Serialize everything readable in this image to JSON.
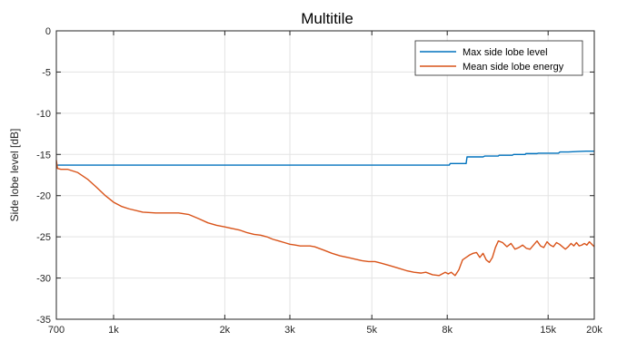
{
  "chart_data": {
    "type": "line",
    "title": "Multitile",
    "xlabel": "",
    "ylabel": "Side lobe level [dB]",
    "xscale": "log",
    "xlim": [
      700,
      20000
    ],
    "ylim": [
      -35,
      0
    ],
    "grid": true,
    "legend_position": "top-right",
    "x_ticks": [
      700,
      1000,
      2000,
      3000,
      5000,
      8000,
      15000,
      20000
    ],
    "x_tick_labels": [
      "700",
      "1k",
      "2k",
      "3k",
      "5k",
      "8k",
      "15k",
      "20k"
    ],
    "y_ticks": [
      0,
      -5,
      -10,
      -15,
      -20,
      -25,
      -30,
      -35
    ],
    "y_tick_labels": [
      "0",
      "-5",
      "-10",
      "-15",
      "-20",
      "-25",
      "-30",
      "-35"
    ],
    "series": [
      {
        "name": "Max side lobe level",
        "color": "#0072BD",
        "x": [
          700,
          702,
          1000,
          2000,
          4000,
          6000,
          8000,
          8100,
          8150,
          9000,
          9050,
          10000,
          10100,
          11000,
          11050,
          12000,
          12100,
          13000,
          13050,
          14000,
          14100,
          16000,
          16150,
          17000,
          18000,
          19000,
          20000
        ],
        "y": [
          -16.0,
          -16.3,
          -16.3,
          -16.3,
          -16.3,
          -16.3,
          -16.3,
          -16.3,
          -16.1,
          -16.1,
          -15.3,
          -15.3,
          -15.2,
          -15.2,
          -15.1,
          -15.1,
          -15.0,
          -15.0,
          -14.9,
          -14.9,
          -14.85,
          -14.85,
          -14.7,
          -14.7,
          -14.65,
          -14.6,
          -14.6
        ]
      },
      {
        "name": "Mean side lobe energy",
        "color": "#D95319",
        "x": [
          700,
          705,
          720,
          750,
          800,
          850,
          900,
          950,
          1000,
          1050,
          1100,
          1200,
          1300,
          1400,
          1500,
          1600,
          1700,
          1800,
          1900,
          2000,
          2100,
          2200,
          2300,
          2400,
          2500,
          2600,
          2700,
          2800,
          2900,
          3000,
          3100,
          3200,
          3300,
          3400,
          3500,
          3700,
          3900,
          4100,
          4300,
          4500,
          4700,
          4900,
          5100,
          5300,
          5600,
          5900,
          6200,
          6500,
          6800,
          7000,
          7300,
          7600,
          7900,
          8050,
          8200,
          8400,
          8600,
          8800,
          9000,
          9200,
          9400,
          9600,
          9800,
          10000,
          10200,
          10400,
          10600,
          10800,
          11000,
          11300,
          11600,
          11900,
          12200,
          12500,
          12800,
          13100,
          13400,
          13700,
          14000,
          14300,
          14600,
          14900,
          15200,
          15500,
          15800,
          16100,
          16400,
          16700,
          17000,
          17300,
          17600,
          17900,
          18200,
          18500,
          18800,
          19100,
          19400,
          19700,
          20000
        ],
        "y": [
          -15.7,
          -16.7,
          -16.8,
          -16.8,
          -17.2,
          -18.0,
          -19.0,
          -20.0,
          -20.8,
          -21.3,
          -21.6,
          -22.0,
          -22.1,
          -22.1,
          -22.1,
          -22.3,
          -22.8,
          -23.3,
          -23.6,
          -23.8,
          -24.0,
          -24.2,
          -24.5,
          -24.7,
          -24.8,
          -25.0,
          -25.3,
          -25.5,
          -25.7,
          -25.9,
          -26.0,
          -26.1,
          -26.1,
          -26.1,
          -26.2,
          -26.6,
          -27.0,
          -27.3,
          -27.5,
          -27.7,
          -27.9,
          -28.0,
          -28.0,
          -28.2,
          -28.5,
          -28.8,
          -29.1,
          -29.3,
          -29.4,
          -29.3,
          -29.6,
          -29.7,
          -29.3,
          -29.5,
          -29.3,
          -29.7,
          -29.0,
          -27.8,
          -27.5,
          -27.2,
          -27.0,
          -26.9,
          -27.5,
          -27.0,
          -27.8,
          -28.1,
          -27.5,
          -26.3,
          -25.5,
          -25.7,
          -26.2,
          -25.8,
          -26.5,
          -26.3,
          -26.0,
          -26.4,
          -26.5,
          -26.0,
          -25.5,
          -26.1,
          -26.3,
          -25.6,
          -26.0,
          -26.2,
          -25.7,
          -25.9,
          -26.2,
          -26.5,
          -26.2,
          -25.8,
          -26.1,
          -25.7,
          -26.1,
          -26.0,
          -25.8,
          -26.0,
          -25.6,
          -25.9,
          -26.2
        ]
      }
    ]
  }
}
